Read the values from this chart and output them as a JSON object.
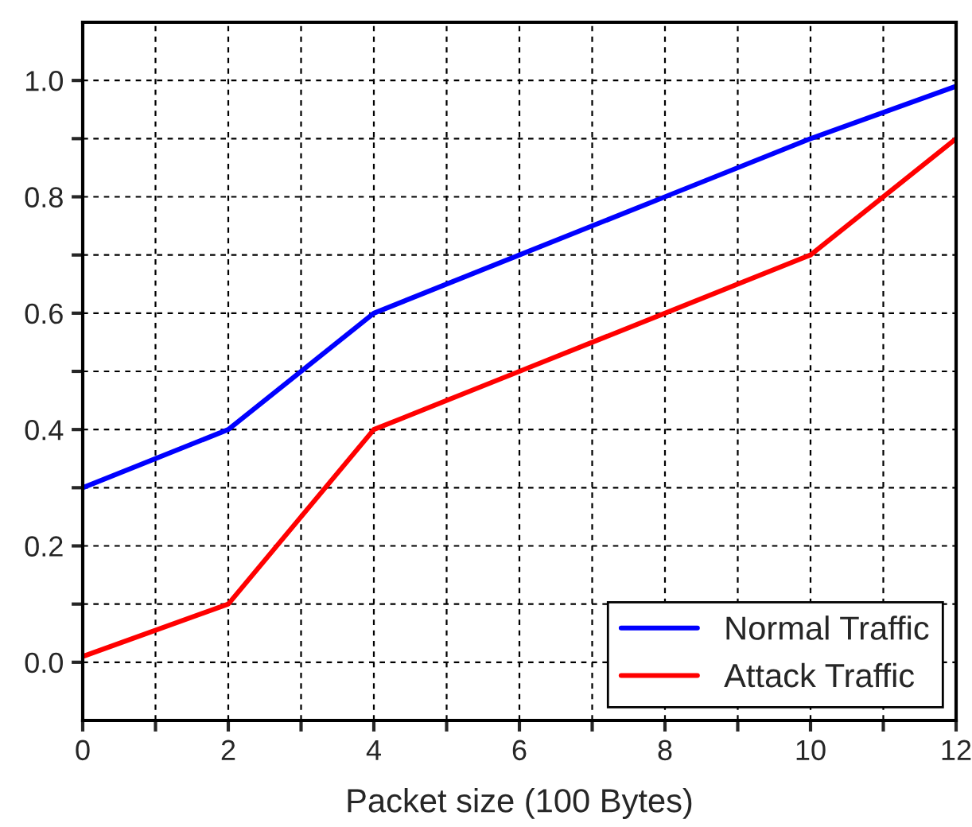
{
  "chart_data": {
    "type": "line",
    "xlabel": "Packet size (100 Bytes)",
    "x": [
      0,
      2,
      4,
      6,
      8,
      10,
      12
    ],
    "series": [
      {
        "name": "Normal Traffic",
        "color": "#0000ff",
        "values": [
          0.3,
          0.4,
          0.6,
          0.7,
          0.8,
          0.9,
          0.99
        ]
      },
      {
        "name": "Attack Traffic",
        "color": "#ff0000",
        "values": [
          0.01,
          0.1,
          0.4,
          0.5,
          0.6,
          0.7,
          0.9
        ]
      }
    ],
    "xlim": [
      0,
      12
    ],
    "xticks": [
      0,
      {
        "value": 1,
        "label": null
      },
      2,
      {
        "value": 3,
        "label": null
      },
      4,
      {
        "value": 5,
        "label": null
      },
      6,
      {
        "value": 7,
        "label": null
      },
      8,
      {
        "value": 9,
        "label": null
      },
      10,
      {
        "value": 11,
        "label": null
      },
      12
    ],
    "ylim": [
      -0.1,
      1.1
    ],
    "yticks": [
      {
        "value": 0.0,
        "label": "0.0"
      },
      {
        "value": 0.1,
        "label": null
      },
      0.2,
      {
        "value": 0.3,
        "label": null
      },
      0.4,
      {
        "value": 0.5,
        "label": null
      },
      0.6,
      {
        "value": 0.7,
        "label": null
      },
      0.8,
      {
        "value": 0.9,
        "label": null
      },
      {
        "value": 1.0,
        "label": "1.0"
      }
    ],
    "grid": true,
    "legend": "bottom right",
    "line_style": "solid",
    "marker": "none"
  }
}
